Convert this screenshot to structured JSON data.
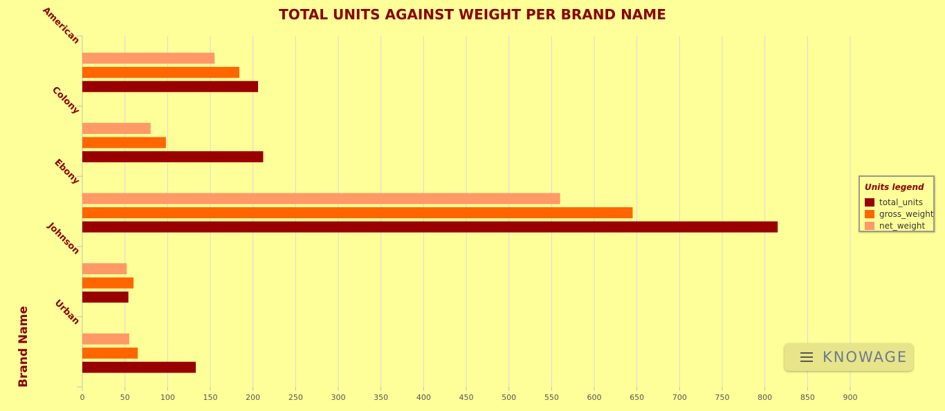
{
  "chart_data": {
    "type": "bar",
    "orientation": "horizontal",
    "title": "TOTAL UNITS AGAINST WEIGHT PER BRAND NAME",
    "xlabel": "",
    "ylabel": "Brand Name",
    "categories": [
      "American",
      "Colony",
      "Ebony",
      "Johnson",
      "Urban"
    ],
    "series": [
      {
        "name": "total_units",
        "color": "#990000",
        "values": [
          206,
          212,
          815,
          54,
          133
        ]
      },
      {
        "name": "gross_weight",
        "color": "#ff6600",
        "values": [
          184,
          98,
          645,
          60,
          65
        ]
      },
      {
        "name": "net_weight",
        "color": "#ff9966",
        "values": [
          155,
          80,
          560,
          52,
          55
        ]
      }
    ],
    "xlim": [
      0,
      900
    ],
    "x_ticks": [
      "0",
      "50",
      "100",
      "150",
      "200",
      "250",
      "300",
      "350",
      "400",
      "450",
      "500",
      "550",
      "600",
      "650",
      "700",
      "750",
      "800",
      "850",
      "900"
    ],
    "grid": true,
    "legend": {
      "title": "Units legend",
      "placement": "right"
    },
    "colors": {
      "background": "#ffff99",
      "title": "#8b0000",
      "grid": "#d9d9d9"
    }
  },
  "branding": {
    "logo_text": "KNOWAGE",
    "menu_icon": "hamburger-menu-icon"
  }
}
